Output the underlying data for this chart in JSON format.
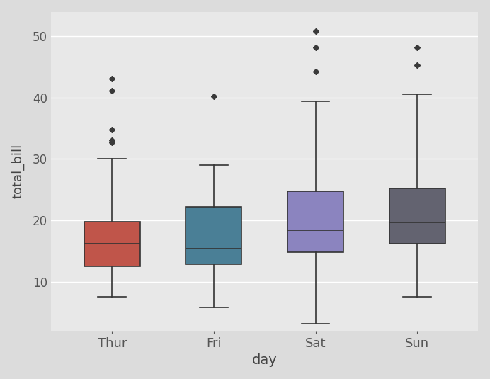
{
  "days": [
    "Thur",
    "Fri",
    "Sat",
    "Sun"
  ],
  "colors": [
    "#c0554a",
    "#4a7f96",
    "#8b84bf",
    "#636370"
  ],
  "ylabel": "total_bill",
  "xlabel": "day",
  "outer_background": "#dcdcdc",
  "plot_background": "#e8e8e8",
  "ylim": [
    2,
    54
  ],
  "yticks": [
    10,
    20,
    30,
    40,
    50
  ],
  "box_data": {
    "Thur": {
      "whislo": 7.51,
      "q1": 12.515,
      "med": 16.2,
      "q3": 19.82,
      "whishi": 30.0,
      "fliers": [
        32.68,
        33.0,
        34.83,
        41.19,
        43.11
      ]
    },
    "Fri": {
      "whislo": 5.75,
      "q1": 12.875,
      "med": 15.38,
      "q3": 22.14,
      "whishi": 28.97,
      "fliers": [
        40.17
      ]
    },
    "Sat": {
      "whislo": 3.07,
      "q1": 14.83,
      "med": 18.39,
      "q3": 24.74,
      "whishi": 39.42,
      "fliers": [
        44.3,
        48.17,
        50.81
      ]
    },
    "Sun": {
      "whislo": 7.56,
      "q1": 16.16,
      "med": 19.63,
      "q3": 25.15,
      "whishi": 40.55,
      "fliers": [
        45.35,
        48.17
      ]
    }
  },
  "linewidth": 1.2,
  "flier_marker": "D",
  "flier_size": 4,
  "box_width": 0.55,
  "figsize": [
    6.92,
    5.35
  ],
  "dpi": 100,
  "tick_label_color": "#555555",
  "axis_label_color": "#444444",
  "median_color": "#333333",
  "whisker_color": "#333333",
  "box_edge_color": "#333333",
  "grid_color": "#ffffff",
  "grid_lw": 1.0
}
